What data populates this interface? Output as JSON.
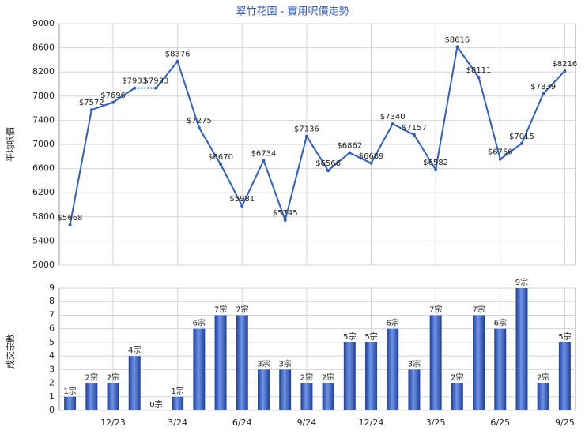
{
  "chart_data": [
    {
      "type": "line",
      "title": "翠竹花園 - 實用呎價走勢",
      "y_label": "平均呎價",
      "color": "#2f5fc4",
      "values": [
        5668,
        7572,
        7696,
        7933,
        7933,
        8376,
        7275,
        6670,
        5981,
        6734,
        5745,
        7136,
        6566,
        6862,
        6689,
        7340,
        7157,
        6582,
        8616,
        8111,
        6756,
        7015,
        7839,
        8216
      ],
      "value_labels": [
        "$5668",
        "$7572",
        "$7696",
        "$7933",
        "$7933",
        "$8376",
        "$7275",
        "$6670",
        "$5981",
        "$6734",
        "$5745",
        "$7136",
        "$6566",
        "$6862",
        "$6689",
        "$7340",
        "$7157",
        "$6582",
        "$8616",
        "$8111",
        "$6756",
        "$7015",
        "$7839",
        "$8216"
      ],
      "ylim": [
        5000,
        9000
      ],
      "yticks": [
        5000,
        5400,
        5800,
        6200,
        6600,
        7000,
        7400,
        7800,
        8200,
        8600,
        9000
      ],
      "grid": true
    },
    {
      "type": "bar",
      "y_label": "成交宗數",
      "color": "#3a64c8",
      "categories": [
        null,
        null,
        "12/23",
        null,
        null,
        "3/24",
        null,
        null,
        "6/24",
        null,
        null,
        "9/24",
        null,
        null,
        "12/24",
        null,
        null,
        "3/25",
        null,
        null,
        "6/25",
        null,
        null,
        "9/25"
      ],
      "values": [
        1,
        2,
        2,
        4,
        0,
        1,
        6,
        7,
        7,
        3,
        3,
        2,
        2,
        5,
        5,
        6,
        3,
        7,
        2,
        7,
        6,
        9,
        2,
        5
      ],
      "value_labels": [
        "1宗",
        "2宗",
        "2宗",
        "4宗",
        "0宗",
        "1宗",
        "6宗",
        "7宗",
        "7宗",
        "3宗",
        "3宗",
        "2宗",
        "2宗",
        "5宗",
        "5宗",
        "6宗",
        "3宗",
        "7宗",
        "2宗",
        "7宗",
        "6宗",
        "9宗",
        "2宗",
        "5宗"
      ],
      "ylim": [
        0,
        9
      ],
      "yticks": [
        0,
        1,
        2,
        3,
        4,
        5,
        6,
        7,
        8,
        9
      ],
      "grid": true
    }
  ]
}
